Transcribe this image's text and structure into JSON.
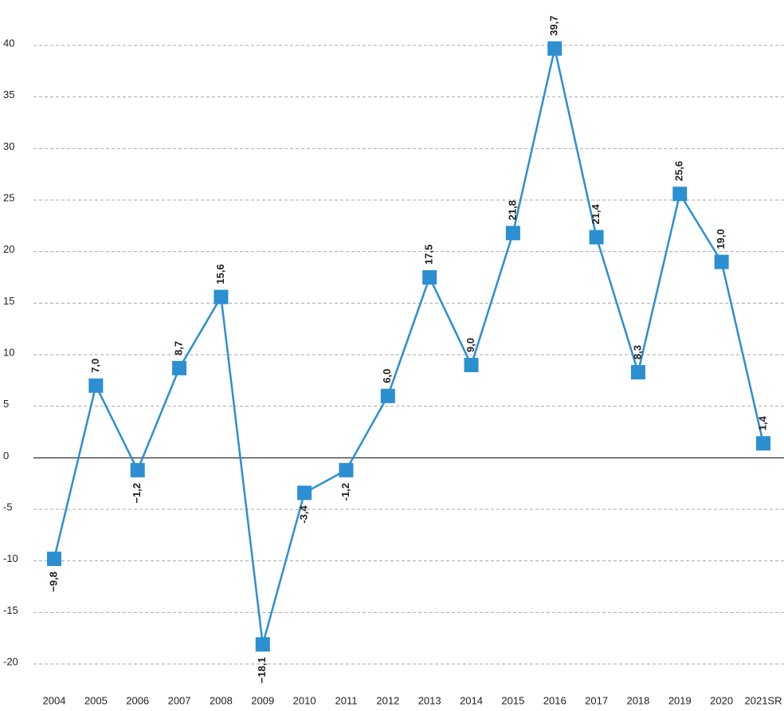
{
  "chart_data": {
    "type": "line",
    "categories": [
      "2004",
      "2005",
      "2006",
      "2007",
      "2008",
      "2009",
      "2010",
      "2011",
      "2012",
      "2013",
      "2014",
      "2015",
      "2016",
      "2017",
      "2018",
      "2019",
      "2020",
      "2021SR"
    ],
    "series": [
      {
        "color": "#2b8fd1",
        "values": [
          -9.8,
          7.0,
          -1.2,
          8.7,
          15.6,
          -18.1,
          -3.4,
          -1.2,
          6.0,
          17.5,
          9.0,
          21.8,
          39.7,
          21.4,
          8.3,
          25.6,
          19.0,
          1.4
        ],
        "value_labels": [
          "−9,8",
          "7,0",
          "−1,2",
          "8,7",
          "15,6",
          "−18,1",
          "-3,4",
          "-1,2",
          "6,0",
          "17,5",
          "9,0",
          "21,8",
          "39,7",
          "21,4",
          "8,3",
          "25,6",
          "19,0",
          "1,4"
        ]
      }
    ],
    "ylim": [
      -20,
      40
    ],
    "yticks": [
      -20,
      -15,
      -10,
      -5,
      0,
      5,
      10,
      15,
      20,
      25,
      30,
      35,
      40
    ],
    "grid": true
  }
}
